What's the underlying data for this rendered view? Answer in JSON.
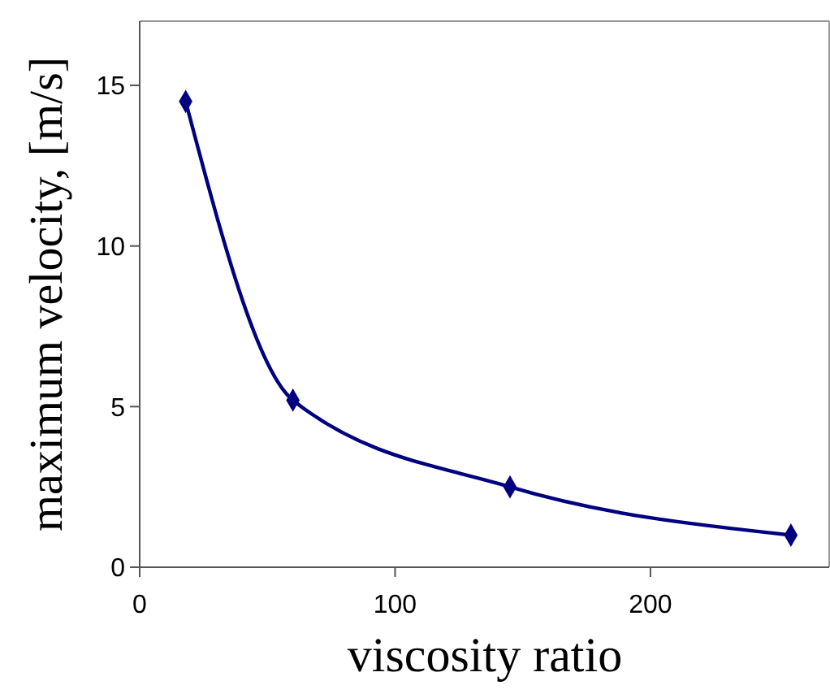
{
  "chart_data": {
    "type": "line",
    "xlabel": "viscosity ratio",
    "ylabel": "maximum velocity, [m/s]",
    "x": [
      18,
      60,
      145,
      255
    ],
    "series": [
      {
        "color": "#000080",
        "values": [
          14.5,
          5.2,
          2.5,
          1.0
        ]
      }
    ],
    "xlim": [
      0,
      270
    ],
    "xticks": [
      0,
      100,
      200
    ],
    "ylim": [
      0,
      17
    ],
    "yticks": [
      0,
      5,
      10,
      15
    ],
    "marker": "diamond",
    "line_style": "solid"
  }
}
